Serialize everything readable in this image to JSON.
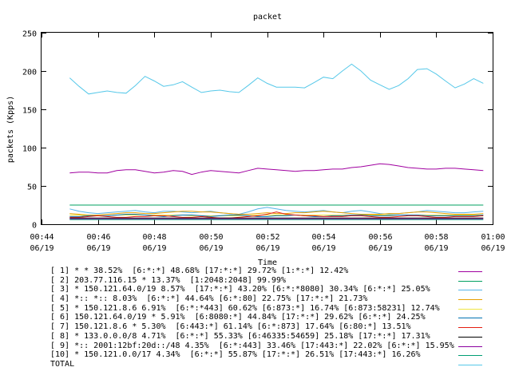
{
  "chart_data": {
    "type": "line",
    "title": "packet",
    "xlabel": "Time",
    "ylabel": "packets (Kpps)",
    "ylim": [
      0,
      250
    ],
    "yticks": [
      0,
      50,
      100,
      150,
      200,
      250
    ],
    "xlim_minutes": [
      44,
      60
    ],
    "xticks": [
      {
        "minute": 44,
        "time": "00:44",
        "date": "06/19"
      },
      {
        "minute": 46,
        "time": "00:46",
        "date": "06/19"
      },
      {
        "minute": 48,
        "time": "00:48",
        "date": "06/19"
      },
      {
        "minute": 50,
        "time": "00:50",
        "date": "06/19"
      },
      {
        "minute": 52,
        "time": "00:52",
        "date": "06/19"
      },
      {
        "minute": 54,
        "time": "00:54",
        "date": "06/19"
      },
      {
        "minute": 56,
        "time": "00:56",
        "date": "06/19"
      },
      {
        "minute": 58,
        "time": "00:58",
        "date": "06/19"
      },
      {
        "minute": 60,
        "time": "01:00",
        "date": "06/19"
      }
    ],
    "x": [
      45,
      45.33,
      45.67,
      46,
      46.33,
      46.67,
      47,
      47.33,
      47.67,
      48,
      48.33,
      48.67,
      49,
      49.33,
      49.67,
      50,
      50.33,
      50.67,
      51,
      51.33,
      51.67,
      52,
      52.33,
      52.67,
      53,
      53.33,
      53.67,
      54,
      54.33,
      54.67,
      55,
      55.33,
      55.67,
      56,
      56.33,
      56.67,
      57,
      57.33,
      57.67,
      58,
      58.33,
      58.67,
      59,
      59.33,
      59.67
    ],
    "grid": false,
    "legend_placement": "below",
    "series": [
      {
        "name": "[ 1] * * 38.52%  [6:*:*] 48.68% [17:*:*] 29.72% [1:*:*] 12.42%",
        "color": "#a000a0",
        "values": [
          67,
          68,
          68,
          67,
          67,
          70,
          71,
          71,
          69,
          67,
          68,
          70,
          69,
          65,
          68,
          70,
          69,
          68,
          67,
          70,
          73,
          72,
          71,
          70,
          69,
          70,
          70,
          71,
          72,
          72,
          74,
          75,
          77,
          79,
          78,
          76,
          74,
          73,
          72,
          72,
          73,
          73,
          72,
          71,
          70
        ]
      },
      {
        "name": "[ 2] 203.77.116.15 * 13.37%  [1:2048:2048] 99.99%",
        "color": "#00a060",
        "values": [
          25,
          25,
          25,
          25,
          25,
          25,
          25,
          25,
          25,
          25,
          25,
          25,
          25,
          25,
          25,
          25,
          25,
          25,
          25,
          25,
          25,
          25,
          25,
          25,
          25,
          25,
          25,
          25,
          25,
          25,
          25,
          25,
          25,
          25,
          25,
          25,
          25,
          25,
          25,
          25,
          25,
          25,
          25,
          25,
          25
        ]
      },
      {
        "name": "[ 3] * 150.121.64.0/19 8.57%  [17:*:*] 43.20% [6:*:*8080] 30.34% [6:*:*] 25.05%",
        "color": "#56b4e9",
        "values": [
          20,
          17,
          15,
          14,
          15,
          16,
          17,
          18,
          16,
          15,
          17,
          17,
          16,
          15,
          16,
          17,
          15,
          14,
          13,
          16,
          20,
          22,
          20,
          18,
          17,
          16,
          17,
          18,
          16,
          15,
          17,
          18,
          16,
          14,
          13,
          14,
          15,
          16,
          18,
          17,
          16,
          15,
          15,
          16,
          17
        ]
      },
      {
        "name": "[ 4] *:: *:: 8.03%  [6:*:*] 44.64% [6:*:80] 22.75% [17:*:*] 21.73%",
        "color": "#e69f00",
        "values": [
          14,
          13,
          12,
          12,
          13,
          14,
          15,
          15,
          14,
          14,
          15,
          16,
          17,
          17,
          16,
          16,
          15,
          14,
          13,
          13,
          14,
          15,
          14,
          14,
          15,
          15,
          16,
          17,
          16,
          15,
          14,
          13,
          13,
          13,
          14,
          14,
          15,
          16,
          16,
          15,
          14,
          13,
          13,
          13,
          14
        ]
      },
      {
        "name": "[ 5] * 150.121.8.6 6.91%  [6:*:*443] 60.62% [6:873:*] 16.74% [6:873:58231] 12.74%",
        "color": "#f0e442",
        "values": [
          12,
          12,
          11,
          11,
          11,
          12,
          12,
          12,
          12,
          12,
          12,
          12,
          12,
          11,
          11,
          11,
          11,
          11,
          11,
          11,
          12,
          12,
          12,
          12,
          12,
          12,
          12,
          12,
          12,
          12,
          12,
          12,
          12,
          12,
          12,
          12,
          12,
          12,
          12,
          12,
          12,
          12,
          12,
          12,
          12
        ]
      },
      {
        "name": "[ 6] 150.121.64.0/19 * 5.91%  [6:8080:*] 44.84% [17:*:*] 29.62% [6:*:*] 24.25%",
        "color": "#0072b2",
        "values": [
          10,
          10,
          11,
          11,
          11,
          12,
          13,
          13,
          12,
          11,
          10,
          11,
          12,
          12,
          11,
          10,
          11,
          12,
          12,
          11,
          10,
          10,
          11,
          11,
          12,
          11,
          10,
          10,
          11,
          11,
          12,
          12,
          11,
          11,
          11,
          12,
          12,
          12,
          11,
          11,
          11,
          11,
          11,
          11,
          12
        ]
      },
      {
        "name": "[ 7] 150.121.8.6 * 5.30%  [6:443:*] 61.14% [6:*:873] 17.64% [6:80:*] 13.51%",
        "color": "#e51e10",
        "values": [
          9,
          9,
          10,
          11,
          10,
          9,
          9,
          10,
          10,
          11,
          11,
          10,
          9,
          9,
          10,
          9,
          8,
          8,
          9,
          10,
          11,
          13,
          16,
          13,
          12,
          11,
          11,
          10,
          10,
          10,
          11,
          11,
          10,
          9,
          9,
          10,
          11,
          11,
          10,
          9,
          9,
          10,
          10,
          10,
          11
        ]
      },
      {
        "name": "[ 8] * 133.0.0.0/8 4.71%  [6:*:*] 55.33% [6:46335:54659] 25.18% [17:*:*] 17.31%",
        "color": "#000000",
        "values": [
          8,
          8,
          8,
          8,
          8,
          8,
          8,
          8,
          8,
          8,
          8,
          8,
          8,
          8,
          8,
          8,
          8,
          8,
          8,
          8,
          8,
          8,
          8,
          8,
          8,
          8,
          8,
          8,
          8,
          8,
          8,
          8,
          8,
          8,
          8,
          8,
          8,
          8,
          8,
          8,
          8,
          8,
          8,
          8,
          8
        ]
      },
      {
        "name": "[ 9] *:: 2001:12bf:20d::/48 4.35%  [6:*:443] 33.46% [17:443:*] 22.02% [6:*:*] 15.95%",
        "color": "#8b00a0",
        "values": [
          7,
          7,
          7,
          7,
          7,
          7,
          7,
          7,
          7,
          7,
          7,
          7,
          7,
          7,
          7,
          7,
          7,
          7,
          7,
          7,
          7,
          7,
          7,
          7,
          7,
          7,
          7,
          7,
          7,
          7,
          7,
          7,
          7,
          7,
          7,
          7,
          7,
          7,
          7,
          7,
          7,
          7,
          7,
          7,
          7
        ]
      },
      {
        "name": "[10] * 150.121.0.0/17 4.34%  [6:*:*] 55.87% [17:*:*] 26.51% [17:443:*] 16.26%",
        "color": "#009e73",
        "values": [
          6,
          6,
          6,
          6,
          6,
          6,
          6,
          6,
          6,
          6,
          6,
          6,
          6,
          6,
          6,
          6,
          6,
          6,
          6,
          6,
          6,
          6,
          6,
          6,
          6,
          6,
          6,
          6,
          6,
          6,
          6,
          6,
          6,
          6,
          6,
          6,
          6,
          6,
          6,
          6,
          6,
          6,
          6,
          6,
          6
        ]
      },
      {
        "name": "TOTAL",
        "color": "#56c8e9",
        "values": [
          191,
          180,
          170,
          172,
          174,
          172,
          171,
          181,
          193,
          187,
          180,
          182,
          186,
          179,
          172,
          174,
          175,
          173,
          172,
          181,
          191,
          184,
          179,
          179,
          179,
          178,
          185,
          192,
          190,
          200,
          209,
          200,
          188,
          182,
          176,
          181,
          190,
          202,
          203,
          196,
          187,
          178,
          183,
          190,
          184
        ]
      }
    ]
  }
}
